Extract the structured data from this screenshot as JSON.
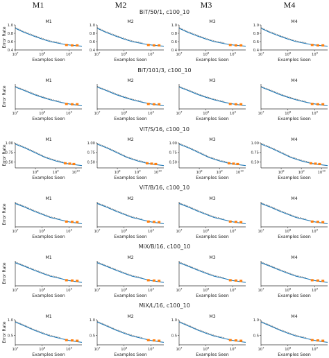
{
  "column_headers": [
    "M1",
    "M2",
    "M3",
    "M4"
  ],
  "colors": {
    "fit_line": "#1f77b4",
    "observed": "#555555",
    "extrapolation_points": "#ff7f0e",
    "axes": "#333333"
  },
  "chart_data": [
    {
      "row_title": "BiT/50/1, c100_10",
      "type": "line",
      "panels": [
        "M1",
        "M2",
        "M3",
        "M4"
      ],
      "xscale": "log",
      "xlabel": "Examples Seen",
      "ylabel": "Error Rate",
      "x_ticks": [
        "10^7",
        "10^8",
        "10^9"
      ],
      "y_ticks": [
        "0.4",
        "0.6",
        "0.8",
        "1.0"
      ],
      "xlim": [
        10000000.0,
        3000000000.0
      ],
      "ylim": [
        0.4,
        1.0
      ],
      "series": [
        {
          "values_x": [
            10000000.0,
            20000000.0,
            50000000.0,
            100000000.0,
            200000000.0,
            500000000.0,
            1000000000.0,
            2000000000.0,
            3000000000.0
          ],
          "values_y": [
            0.92,
            0.83,
            0.73,
            0.66,
            0.6,
            0.55,
            0.52,
            0.5,
            0.49
          ]
        }
      ],
      "extrapolation_x": [
        800000000.0,
        1300000000.0,
        2000000000.0
      ],
      "extrapolation_y": [
        0.52,
        0.51,
        0.51
      ]
    },
    {
      "row_title": "BiT/101/3, c100_10",
      "type": "line",
      "panels": [
        "M1",
        "M2",
        "M3",
        "M4"
      ],
      "xscale": "log",
      "xlabel": "Examples Seen",
      "ylabel": "Error Rate",
      "x_ticks": [
        "10^7",
        "10^8",
        "10^9"
      ],
      "y_ticks": [],
      "xlim": [
        10000000.0,
        3000000000.0
      ],
      "ylim": [
        0.2,
        1.0
      ],
      "series": [
        {
          "values_x": [
            10000000.0,
            20000000.0,
            50000000.0,
            100000000.0,
            200000000.0,
            500000000.0,
            1000000000.0,
            2000000000.0,
            3000000000.0
          ],
          "values_y": [
            0.9,
            0.8,
            0.66,
            0.57,
            0.49,
            0.41,
            0.36,
            0.32,
            0.3
          ]
        }
      ],
      "extrapolation_x": [
        800000000.0,
        1300000000.0,
        2000000000.0
      ],
      "extrapolation_y": [
        0.36,
        0.35,
        0.35
      ]
    },
    {
      "row_title": "ViT/S/16, c100_10",
      "type": "line",
      "panels": [
        "M1",
        "M2",
        "M3",
        "M4"
      ],
      "xscale": "log",
      "xlabel": "Examples Seen",
      "ylabel": "Error Rate",
      "x_ticks": [
        "10^8",
        "10^9",
        "10^10"
      ],
      "y_ticks": [
        "0.50",
        "0.75",
        "1.00"
      ],
      "xlim": [
        10000000.0,
        20000000000.0
      ],
      "ylim": [
        0.35,
        1.0
      ],
      "series": [
        {
          "values_x": [
            10000000.0,
            30000000.0,
            100000000.0,
            300000000.0,
            1000000000.0,
            3000000000.0,
            10000000000.0,
            20000000000.0
          ],
          "values_y": [
            0.97,
            0.87,
            0.74,
            0.62,
            0.53,
            0.47,
            0.43,
            0.41
          ]
        }
      ],
      "extrapolation_x": [
        3000000000.0,
        5000000000.0,
        8000000000.0
      ],
      "extrapolation_y": [
        0.47,
        0.46,
        0.45
      ]
    },
    {
      "row_title": "ViT/B/16, c100_10",
      "type": "line",
      "panels": [
        "M1",
        "M2",
        "M3",
        "M4"
      ],
      "xscale": "log",
      "xlabel": "Examples Seen",
      "ylabel": "Error Rate",
      "x_ticks": [
        "10^7",
        "10^8",
        "10^9"
      ],
      "y_ticks": [],
      "xlim": [
        10000000.0,
        3000000000.0
      ],
      "ylim": [
        0.2,
        1.0
      ],
      "series": [
        {
          "values_x": [
            10000000.0,
            20000000.0,
            50000000.0,
            100000000.0,
            200000000.0,
            500000000.0,
            1000000000.0,
            2000000000.0,
            3000000000.0
          ],
          "values_y": [
            0.95,
            0.85,
            0.7,
            0.6,
            0.5,
            0.42,
            0.36,
            0.32,
            0.3
          ]
        }
      ],
      "extrapolation_x": [
        800000000.0,
        1300000000.0,
        2000000000.0
      ],
      "extrapolation_y": [
        0.37,
        0.36,
        0.35
      ]
    },
    {
      "row_title": "MiX/B/16, c100_10",
      "type": "line",
      "panels": [
        "M1",
        "M2",
        "M3",
        "M4"
      ],
      "xscale": "log",
      "xlabel": "Examples Seen",
      "ylabel": "Error Rate",
      "x_ticks": [
        "10^7",
        "10^8",
        "10^9"
      ],
      "y_ticks": [],
      "xlim": [
        10000000.0,
        3000000000.0
      ],
      "ylim": [
        0.2,
        1.0
      ],
      "series": [
        {
          "values_x": [
            10000000.0,
            20000000.0,
            50000000.0,
            100000000.0,
            200000000.0,
            500000000.0,
            1000000000.0,
            2000000000.0,
            3000000000.0
          ],
          "values_y": [
            0.94,
            0.84,
            0.7,
            0.6,
            0.51,
            0.43,
            0.37,
            0.33,
            0.31
          ]
        }
      ],
      "extrapolation_x": [
        800000000.0,
        1300000000.0,
        2000000000.0
      ],
      "extrapolation_y": [
        0.38,
        0.37,
        0.36
      ]
    },
    {
      "row_title": "MiX/L/16, c100_10",
      "type": "line",
      "panels": [
        "M1",
        "M2",
        "M3",
        "M4"
      ],
      "xscale": "log",
      "xlabel": "Examples Seen",
      "ylabel": "Error Rate",
      "x_ticks": [
        "10^7",
        "10^8",
        "10^9"
      ],
      "y_ticks": [
        "0.5",
        "1.0"
      ],
      "xlim": [
        10000000.0,
        3000000000.0
      ],
      "ylim": [
        0.2,
        1.0
      ],
      "series": [
        {
          "values_x": [
            10000000.0,
            20000000.0,
            50000000.0,
            100000000.0,
            200000000.0,
            500000000.0,
            1000000000.0,
            2000000000.0,
            3000000000.0
          ],
          "values_y": [
            0.93,
            0.82,
            0.67,
            0.57,
            0.48,
            0.4,
            0.34,
            0.3,
            0.28
          ]
        }
      ],
      "extrapolation_x": [
        800000000.0,
        1300000000.0,
        2000000000.0
      ],
      "extrapolation_y": [
        0.35,
        0.34,
        0.33
      ]
    }
  ]
}
